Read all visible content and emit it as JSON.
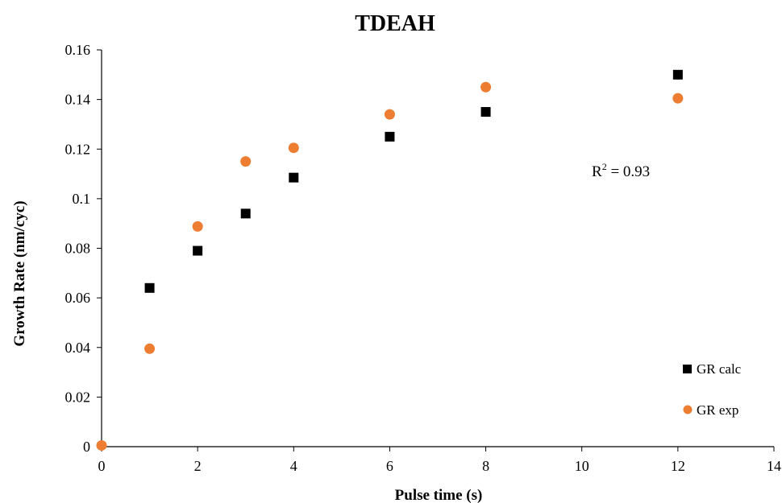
{
  "chart_data": {
    "type": "scatter",
    "title": "TDEAH",
    "xlabel": "Pulse time (s)",
    "ylabel": "Growth Rate (nm/cyc)",
    "xlim": [
      0,
      14
    ],
    "ylim": [
      0,
      0.16
    ],
    "xticks": [
      "0",
      "2",
      "4",
      "6",
      "8",
      "10",
      "12",
      "14"
    ],
    "yticks": [
      "0",
      "0.02",
      "0.04",
      "0.06",
      "0.08",
      "0.1",
      "0.12",
      "0.14",
      "0.16"
    ],
    "grid": false,
    "legend_position": "bottom-right",
    "series": [
      {
        "name": "GR calc",
        "marker": "square",
        "color": "#000000",
        "points": [
          {
            "x": 1,
            "y": 0.064
          },
          {
            "x": 2,
            "y": 0.079
          },
          {
            "x": 3,
            "y": 0.094
          },
          {
            "x": 4,
            "y": 0.1085
          },
          {
            "x": 6,
            "y": 0.125
          },
          {
            "x": 8,
            "y": 0.135
          },
          {
            "x": 12,
            "y": 0.15
          }
        ]
      },
      {
        "name": "GR exp",
        "marker": "circle",
        "color": "#ED7D31",
        "points": [
          {
            "x": 0,
            "y": 0.0005
          },
          {
            "x": 1,
            "y": 0.0395
          },
          {
            "x": 2,
            "y": 0.0888
          },
          {
            "x": 3,
            "y": 0.115
          },
          {
            "x": 4,
            "y": 0.1205
          },
          {
            "x": 6,
            "y": 0.134
          },
          {
            "x": 8,
            "y": 0.145
          },
          {
            "x": 12,
            "y": 0.1405
          }
        ]
      }
    ],
    "annotation": {
      "prefix": "R",
      "superscript": "2",
      "suffix": " = 0.93"
    }
  }
}
